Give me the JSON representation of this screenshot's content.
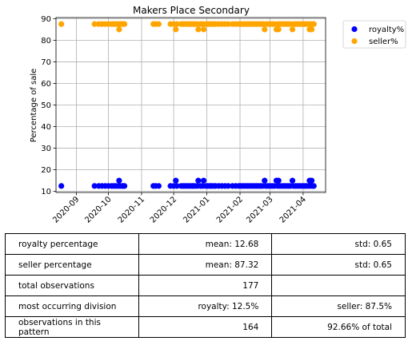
{
  "chart_data": {
    "type": "scatter",
    "title": "Makers Place Secondary",
    "ylabel": "Percentage of sale",
    "xlabel": "",
    "xlim": [
      "2020-08-13",
      "2021-04-22"
    ],
    "ylim": [
      9.5,
      90.5
    ],
    "grid": true,
    "legend_position": "upper-right-outside",
    "x_ticks": [
      "2020-09",
      "2020-10",
      "2020-11",
      "2020-12",
      "2021-01",
      "2021-02",
      "2021-03",
      "2021-04"
    ],
    "y_ticks": [
      10,
      20,
      30,
      40,
      50,
      60,
      70,
      80,
      90
    ],
    "series": [
      {
        "name": "royalty%",
        "color": "#0000ff",
        "points": [
          [
            "2020-08-18",
            12.5
          ],
          [
            "2020-09-18",
            12.5
          ],
          [
            "2020-09-22",
            12.5
          ],
          [
            "2020-09-25",
            12.5
          ],
          [
            "2020-09-28",
            12.5
          ],
          [
            "2020-10-01",
            12.5
          ],
          [
            "2020-10-04",
            12.5
          ],
          [
            "2020-10-06",
            12.5
          ],
          [
            "2020-10-08",
            12.5
          ],
          [
            "2020-10-10",
            12.5
          ],
          [
            "2020-10-11",
            15.0
          ],
          [
            "2020-10-12",
            12.5
          ],
          [
            "2020-10-14",
            12.5
          ],
          [
            "2020-10-15",
            12.5
          ],
          [
            "2020-10-16",
            12.5
          ],
          [
            "2020-11-12",
            12.5
          ],
          [
            "2020-11-14",
            12.5
          ],
          [
            "2020-11-17",
            12.5
          ],
          [
            "2020-11-28",
            12.5
          ],
          [
            "2020-12-01",
            12.5
          ],
          [
            "2020-12-03",
            15.0
          ],
          [
            "2020-12-04",
            12.5
          ],
          [
            "2020-12-08",
            12.5
          ],
          [
            "2020-12-10",
            12.5
          ],
          [
            "2020-12-12",
            12.5
          ],
          [
            "2020-12-14",
            12.5
          ],
          [
            "2020-12-16",
            12.5
          ],
          [
            "2020-12-18",
            12.5
          ],
          [
            "2020-12-19",
            12.5
          ],
          [
            "2020-12-21",
            12.5
          ],
          [
            "2020-12-23",
            12.5
          ],
          [
            "2020-12-24",
            15.0
          ],
          [
            "2020-12-26",
            12.5
          ],
          [
            "2020-12-28",
            12.5
          ],
          [
            "2020-12-29",
            15.0
          ],
          [
            "2020-12-31",
            12.5
          ],
          [
            "2021-01-02",
            12.5
          ],
          [
            "2021-01-04",
            12.5
          ],
          [
            "2021-01-05",
            12.5
          ],
          [
            "2021-01-07",
            12.5
          ],
          [
            "2021-01-09",
            12.5
          ],
          [
            "2021-01-12",
            12.5
          ],
          [
            "2021-01-15",
            12.5
          ],
          [
            "2021-01-18",
            12.5
          ],
          [
            "2021-01-21",
            12.5
          ],
          [
            "2021-01-25",
            12.5
          ],
          [
            "2021-01-28",
            12.5
          ],
          [
            "2021-01-31",
            12.5
          ],
          [
            "2021-02-02",
            12.5
          ],
          [
            "2021-02-04",
            12.5
          ],
          [
            "2021-02-06",
            12.5
          ],
          [
            "2021-02-08",
            12.5
          ],
          [
            "2021-02-10",
            12.5
          ],
          [
            "2021-02-12",
            12.5
          ],
          [
            "2021-02-14",
            12.5
          ],
          [
            "2021-02-16",
            12.5
          ],
          [
            "2021-02-18",
            12.5
          ],
          [
            "2021-02-20",
            12.5
          ],
          [
            "2021-02-22",
            12.5
          ],
          [
            "2021-02-24",
            15.0
          ],
          [
            "2021-02-25",
            12.5
          ],
          [
            "2021-02-27",
            12.5
          ],
          [
            "2021-03-01",
            12.5
          ],
          [
            "2021-03-03",
            12.5
          ],
          [
            "2021-03-05",
            12.5
          ],
          [
            "2021-03-07",
            15.0
          ],
          [
            "2021-03-08",
            12.5
          ],
          [
            "2021-03-09",
            15.0
          ],
          [
            "2021-03-10",
            12.5
          ],
          [
            "2021-03-12",
            12.5
          ],
          [
            "2021-03-14",
            12.5
          ],
          [
            "2021-03-16",
            12.5
          ],
          [
            "2021-03-18",
            12.5
          ],
          [
            "2021-03-20",
            12.5
          ],
          [
            "2021-03-22",
            15.0
          ],
          [
            "2021-03-23",
            12.5
          ],
          [
            "2021-03-25",
            12.5
          ],
          [
            "2021-03-27",
            12.5
          ],
          [
            "2021-03-29",
            12.5
          ],
          [
            "2021-03-31",
            12.5
          ],
          [
            "2021-04-02",
            12.5
          ],
          [
            "2021-04-04",
            12.5
          ],
          [
            "2021-04-06",
            12.5
          ],
          [
            "2021-04-07",
            15.0
          ],
          [
            "2021-04-08",
            12.5
          ],
          [
            "2021-04-09",
            15.0
          ],
          [
            "2021-04-10",
            12.5
          ],
          [
            "2021-04-11",
            12.5
          ]
        ]
      },
      {
        "name": "seller%",
        "color": "#ffa500",
        "points": [
          [
            "2020-08-18",
            87.5
          ],
          [
            "2020-09-18",
            87.5
          ],
          [
            "2020-09-22",
            87.5
          ],
          [
            "2020-09-25",
            87.5
          ],
          [
            "2020-09-28",
            87.5
          ],
          [
            "2020-10-01",
            87.5
          ],
          [
            "2020-10-04",
            87.5
          ],
          [
            "2020-10-06",
            87.5
          ],
          [
            "2020-10-08",
            87.5
          ],
          [
            "2020-10-10",
            87.5
          ],
          [
            "2020-10-11",
            85.0
          ],
          [
            "2020-10-12",
            87.5
          ],
          [
            "2020-10-14",
            87.5
          ],
          [
            "2020-10-15",
            87.5
          ],
          [
            "2020-10-16",
            87.5
          ],
          [
            "2020-11-12",
            87.5
          ],
          [
            "2020-11-14",
            87.5
          ],
          [
            "2020-11-17",
            87.5
          ],
          [
            "2020-11-28",
            87.5
          ],
          [
            "2020-12-01",
            87.5
          ],
          [
            "2020-12-03",
            85.0
          ],
          [
            "2020-12-04",
            87.5
          ],
          [
            "2020-12-08",
            87.5
          ],
          [
            "2020-12-10",
            87.5
          ],
          [
            "2020-12-12",
            87.5
          ],
          [
            "2020-12-14",
            87.5
          ],
          [
            "2020-12-16",
            87.5
          ],
          [
            "2020-12-18",
            87.5
          ],
          [
            "2020-12-19",
            87.5
          ],
          [
            "2020-12-21",
            87.5
          ],
          [
            "2020-12-23",
            87.5
          ],
          [
            "2020-12-24",
            85.0
          ],
          [
            "2020-12-26",
            87.5
          ],
          [
            "2020-12-28",
            87.5
          ],
          [
            "2020-12-29",
            85.0
          ],
          [
            "2020-12-31",
            87.5
          ],
          [
            "2021-01-02",
            87.5
          ],
          [
            "2021-01-04",
            87.5
          ],
          [
            "2021-01-05",
            87.5
          ],
          [
            "2021-01-07",
            87.5
          ],
          [
            "2021-01-09",
            87.5
          ],
          [
            "2021-01-12",
            87.5
          ],
          [
            "2021-01-15",
            87.5
          ],
          [
            "2021-01-18",
            87.5
          ],
          [
            "2021-01-21",
            87.5
          ],
          [
            "2021-01-25",
            87.5
          ],
          [
            "2021-01-28",
            87.5
          ],
          [
            "2021-01-31",
            87.5
          ],
          [
            "2021-02-02",
            87.5
          ],
          [
            "2021-02-04",
            87.5
          ],
          [
            "2021-02-06",
            87.5
          ],
          [
            "2021-02-08",
            87.5
          ],
          [
            "2021-02-10",
            87.5
          ],
          [
            "2021-02-12",
            87.5
          ],
          [
            "2021-02-14",
            87.5
          ],
          [
            "2021-02-16",
            87.5
          ],
          [
            "2021-02-18",
            87.5
          ],
          [
            "2021-02-20",
            87.5
          ],
          [
            "2021-02-22",
            87.5
          ],
          [
            "2021-02-24",
            85.0
          ],
          [
            "2021-02-25",
            87.5
          ],
          [
            "2021-02-27",
            87.5
          ],
          [
            "2021-03-01",
            87.5
          ],
          [
            "2021-03-03",
            87.5
          ],
          [
            "2021-03-05",
            87.5
          ],
          [
            "2021-03-07",
            85.0
          ],
          [
            "2021-03-08",
            87.5
          ],
          [
            "2021-03-09",
            85.0
          ],
          [
            "2021-03-10",
            87.5
          ],
          [
            "2021-03-12",
            87.5
          ],
          [
            "2021-03-14",
            87.5
          ],
          [
            "2021-03-16",
            87.5
          ],
          [
            "2021-03-18",
            87.5
          ],
          [
            "2021-03-20",
            87.5
          ],
          [
            "2021-03-22",
            85.0
          ],
          [
            "2021-03-23",
            87.5
          ],
          [
            "2021-03-25",
            87.5
          ],
          [
            "2021-03-27",
            87.5
          ],
          [
            "2021-03-29",
            87.5
          ],
          [
            "2021-03-31",
            87.5
          ],
          [
            "2021-04-02",
            87.5
          ],
          [
            "2021-04-04",
            87.5
          ],
          [
            "2021-04-06",
            87.5
          ],
          [
            "2021-04-07",
            85.0
          ],
          [
            "2021-04-08",
            87.5
          ],
          [
            "2021-04-09",
            85.0
          ],
          [
            "2021-04-10",
            87.5
          ],
          [
            "2021-04-11",
            87.5
          ]
        ]
      }
    ]
  },
  "stats_table": {
    "rows": [
      [
        "royalty percentage",
        "mean: 12.68",
        "std: 0.65"
      ],
      [
        "seller percentage",
        "mean: 87.32",
        "std: 0.65"
      ],
      [
        "total observations",
        "177",
        ""
      ],
      [
        "most occurring division",
        "royalty: 12.5%",
        "seller: 87.5%"
      ],
      [
        "observations in this pattern",
        "164",
        "92.66% of total"
      ]
    ]
  }
}
